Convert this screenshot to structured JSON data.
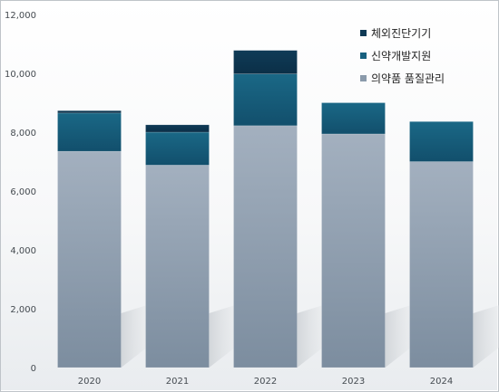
{
  "chart_data": {
    "type": "bar",
    "stacked": true,
    "categories": [
      "2020",
      "2021",
      "2022",
      "2023",
      "2024"
    ],
    "series": [
      {
        "name": "의약품 품질관리",
        "values": [
          7350,
          6880,
          8220,
          7940,
          7000
        ],
        "color": "#8a9aab"
      },
      {
        "name": "신약개발지원",
        "values": [
          1300,
          1120,
          1760,
          1060,
          1360
        ],
        "color": "#17607f"
      },
      {
        "name": "체외진단기기",
        "values": [
          80,
          250,
          800,
          0,
          0
        ],
        "color": "#0f3a55"
      }
    ],
    "ylim": [
      0,
      12000
    ],
    "yticks": [
      "0",
      "2,000",
      "4,000",
      "6,000",
      "8,000",
      "10,000",
      "12,000"
    ],
    "ytick_values": [
      0,
      2000,
      4000,
      6000,
      8000,
      10000,
      12000
    ],
    "legend_order": [
      2,
      1,
      0
    ],
    "legend_position": "top-right",
    "grid": false,
    "title": "",
    "xlabel": "",
    "ylabel": ""
  }
}
